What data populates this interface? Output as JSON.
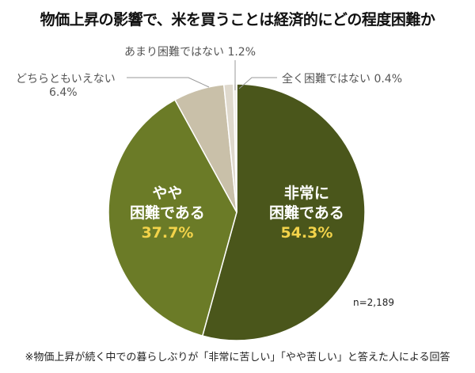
{
  "chart_data": {
    "type": "pie",
    "title": "物価上昇の影響で、米を買うことは経済的にどの程度困難か",
    "start": "top",
    "direction": "clockwise",
    "slices": [
      {
        "label_line1": "非常に",
        "label_line2": "困難である",
        "value": 54.3,
        "value_label": "54.3%",
        "color": "#4a561b"
      },
      {
        "label_line1": "やや",
        "label_line2": "困難である",
        "value": 37.7,
        "value_label": "37.7%",
        "color": "#6b7b27"
      },
      {
        "label": "どちらともいえない",
        "value": 6.4,
        "value_label": "6.4%",
        "color": "#c9c0a9"
      },
      {
        "label": "あまり困難ではない",
        "value": 1.2,
        "value_label": "1.2%",
        "color": "#dfd9cd"
      },
      {
        "label": "全く困難ではない",
        "value": 0.4,
        "value_label": "0.4%",
        "color": "#efece6"
      }
    ],
    "n_label": "n=2,189",
    "footnote": "※物価上昇が続く中での暮らしぶりが「非常に苦しい」「やや苦しい」と答えた人による回答"
  }
}
